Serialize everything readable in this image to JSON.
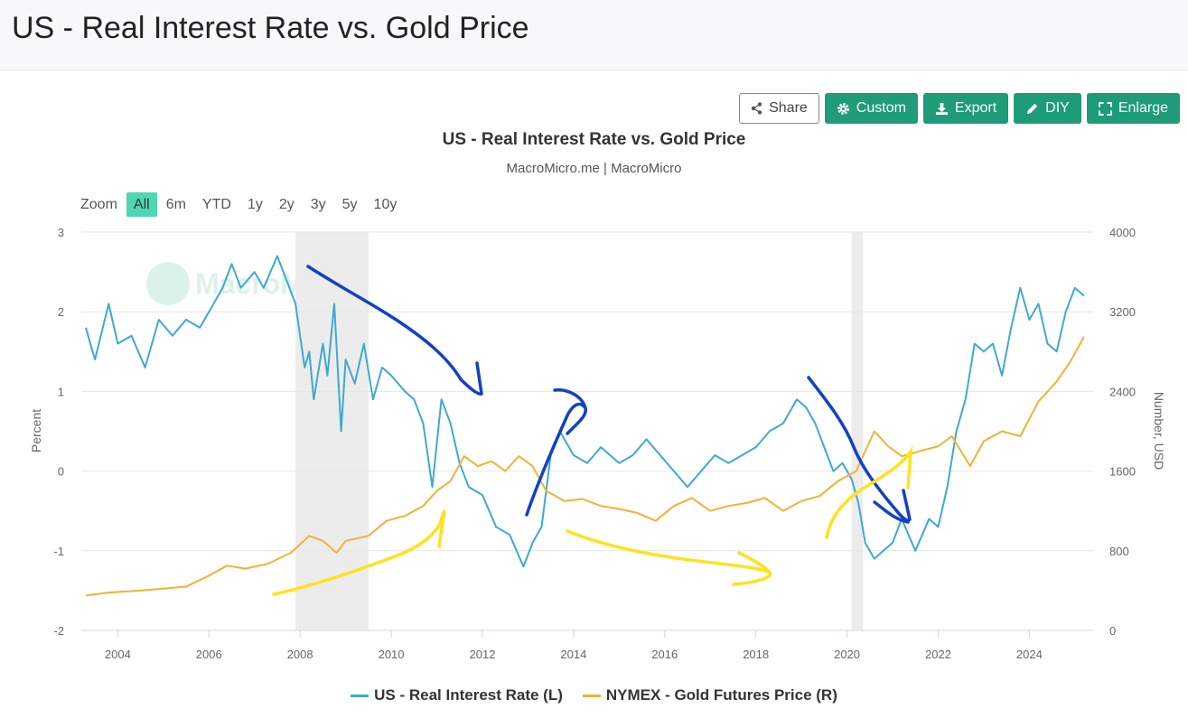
{
  "header": {
    "title": "US - Real Interest Rate vs. Gold Price"
  },
  "toolbar": {
    "share": "Share",
    "custom": "Custom",
    "export": "Export",
    "diy": "DIY",
    "enlarge": "Enlarge"
  },
  "zoom": {
    "label": "Zoom",
    "options": [
      "All",
      "6m",
      "YTD",
      "1y",
      "2y",
      "3y",
      "5y",
      "10y"
    ],
    "selected": "All"
  },
  "watermark": "MacroMicro",
  "colors": {
    "real_rate": "#3fa9d0",
    "gold": "#f2b233",
    "accent": "#1e9b78",
    "zoom_active": "#4fd6b4",
    "annotation_blue": "#1141c9",
    "annotation_yellow": "#ffe21f",
    "recession": "#ececec"
  },
  "chart_data": {
    "type": "line",
    "title": "US - Real Interest Rate vs. Gold Price",
    "subtitle": "MacroMicro.me | MacroMicro",
    "ylabel_left": "Percent",
    "ylabel_right": "Number, USD",
    "ylim_left": [
      -2,
      3
    ],
    "ylim_right": [
      0,
      4000
    ],
    "y_ticks_left": [
      "3",
      "2",
      "1",
      "0",
      "-1",
      "-2"
    ],
    "y_ticks_right": [
      "4000",
      "3200",
      "2400",
      "1600",
      "800",
      "0"
    ],
    "x_range": [
      2003.2,
      2025.4
    ],
    "x_ticks": [
      "2004",
      "2006",
      "2008",
      "2010",
      "2012",
      "2014",
      "2016",
      "2018",
      "2020",
      "2022",
      "2024"
    ],
    "grid": true,
    "legend_position": "bottom-center",
    "recession_shading": [
      [
        2007.9,
        2009.5
      ],
      [
        2020.1,
        2020.35
      ]
    ],
    "series": [
      {
        "name": "US - Real Interest Rate (L)",
        "axis": "left",
        "color": "#3fa9d0",
        "points": [
          [
            2003.3,
            1.8
          ],
          [
            2003.5,
            1.4
          ],
          [
            2003.8,
            2.1
          ],
          [
            2004.0,
            1.6
          ],
          [
            2004.3,
            1.7
          ],
          [
            2004.6,
            1.3
          ],
          [
            2004.9,
            1.9
          ],
          [
            2005.2,
            1.7
          ],
          [
            2005.5,
            1.9
          ],
          [
            2005.8,
            1.8
          ],
          [
            2006.0,
            2.0
          ],
          [
            2006.3,
            2.3
          ],
          [
            2006.5,
            2.6
          ],
          [
            2006.7,
            2.3
          ],
          [
            2007.0,
            2.5
          ],
          [
            2007.2,
            2.3
          ],
          [
            2007.5,
            2.7
          ],
          [
            2007.7,
            2.4
          ],
          [
            2007.9,
            2.1
          ],
          [
            2008.1,
            1.3
          ],
          [
            2008.2,
            1.5
          ],
          [
            2008.3,
            0.9
          ],
          [
            2008.5,
            1.6
          ],
          [
            2008.6,
            1.2
          ],
          [
            2008.75,
            2.1
          ],
          [
            2008.9,
            0.5
          ],
          [
            2009.0,
            1.4
          ],
          [
            2009.2,
            1.1
          ],
          [
            2009.4,
            1.6
          ],
          [
            2009.6,
            0.9
          ],
          [
            2009.8,
            1.3
          ],
          [
            2010.0,
            1.2
          ],
          [
            2010.3,
            1.0
          ],
          [
            2010.5,
            0.9
          ],
          [
            2010.7,
            0.6
          ],
          [
            2010.9,
            -0.2
          ],
          [
            2011.1,
            0.9
          ],
          [
            2011.3,
            0.6
          ],
          [
            2011.5,
            0.1
          ],
          [
            2011.7,
            -0.2
          ],
          [
            2012.0,
            -0.3
          ],
          [
            2012.3,
            -0.7
          ],
          [
            2012.6,
            -0.8
          ],
          [
            2012.9,
            -1.2
          ],
          [
            2013.1,
            -0.9
          ],
          [
            2013.3,
            -0.7
          ],
          [
            2013.5,
            0.2
          ],
          [
            2013.7,
            0.5
          ],
          [
            2014.0,
            0.2
          ],
          [
            2014.3,
            0.1
          ],
          [
            2014.6,
            0.3
          ],
          [
            2015.0,
            0.1
          ],
          [
            2015.3,
            0.2
          ],
          [
            2015.6,
            0.4
          ],
          [
            2015.9,
            0.2
          ],
          [
            2016.2,
            0.0
          ],
          [
            2016.5,
            -0.2
          ],
          [
            2016.8,
            0.0
          ],
          [
            2017.1,
            0.2
          ],
          [
            2017.4,
            0.1
          ],
          [
            2017.7,
            0.2
          ],
          [
            2018.0,
            0.3
          ],
          [
            2018.3,
            0.5
          ],
          [
            2018.6,
            0.6
          ],
          [
            2018.9,
            0.9
          ],
          [
            2019.1,
            0.8
          ],
          [
            2019.3,
            0.6
          ],
          [
            2019.5,
            0.3
          ],
          [
            2019.7,
            0.0
          ],
          [
            2019.9,
            0.1
          ],
          [
            2020.1,
            -0.1
          ],
          [
            2020.25,
            -0.4
          ],
          [
            2020.4,
            -0.9
          ],
          [
            2020.6,
            -1.1
          ],
          [
            2020.8,
            -1.0
          ],
          [
            2021.0,
            -0.9
          ],
          [
            2021.2,
            -0.6
          ],
          [
            2021.5,
            -1.0
          ],
          [
            2021.8,
            -0.6
          ],
          [
            2022.0,
            -0.7
          ],
          [
            2022.2,
            -0.2
          ],
          [
            2022.4,
            0.5
          ],
          [
            2022.6,
            0.9
          ],
          [
            2022.8,
            1.6
          ],
          [
            2023.0,
            1.5
          ],
          [
            2023.2,
            1.6
          ],
          [
            2023.4,
            1.2
          ],
          [
            2023.6,
            1.8
          ],
          [
            2023.8,
            2.3
          ],
          [
            2024.0,
            1.9
          ],
          [
            2024.2,
            2.1
          ],
          [
            2024.4,
            1.6
          ],
          [
            2024.6,
            1.5
          ],
          [
            2024.8,
            2.0
          ],
          [
            2025.0,
            2.3
          ],
          [
            2025.2,
            2.2
          ]
        ]
      },
      {
        "name": "NYMEX - Gold Futures Price (R)",
        "axis": "right",
        "color": "#f2b233",
        "points": [
          [
            2003.3,
            350
          ],
          [
            2003.8,
            380
          ],
          [
            2004.5,
            400
          ],
          [
            2005.0,
            420
          ],
          [
            2005.5,
            440
          ],
          [
            2006.0,
            550
          ],
          [
            2006.4,
            650
          ],
          [
            2006.8,
            620
          ],
          [
            2007.3,
            670
          ],
          [
            2007.8,
            780
          ],
          [
            2008.2,
            950
          ],
          [
            2008.5,
            900
          ],
          [
            2008.8,
            780
          ],
          [
            2009.0,
            900
          ],
          [
            2009.5,
            950
          ],
          [
            2009.9,
            1100
          ],
          [
            2010.3,
            1150
          ],
          [
            2010.7,
            1250
          ],
          [
            2011.0,
            1400
          ],
          [
            2011.3,
            1500
          ],
          [
            2011.6,
            1750
          ],
          [
            2011.9,
            1650
          ],
          [
            2012.2,
            1700
          ],
          [
            2012.5,
            1600
          ],
          [
            2012.8,
            1750
          ],
          [
            2013.1,
            1650
          ],
          [
            2013.4,
            1400
          ],
          [
            2013.8,
            1300
          ],
          [
            2014.2,
            1320
          ],
          [
            2014.6,
            1250
          ],
          [
            2015.0,
            1220
          ],
          [
            2015.4,
            1180
          ],
          [
            2015.8,
            1100
          ],
          [
            2016.2,
            1250
          ],
          [
            2016.6,
            1330
          ],
          [
            2017.0,
            1200
          ],
          [
            2017.4,
            1250
          ],
          [
            2017.8,
            1280
          ],
          [
            2018.2,
            1330
          ],
          [
            2018.6,
            1200
          ],
          [
            2019.0,
            1300
          ],
          [
            2019.4,
            1350
          ],
          [
            2019.8,
            1500
          ],
          [
            2020.2,
            1600
          ],
          [
            2020.6,
            2000
          ],
          [
            2020.9,
            1850
          ],
          [
            2021.2,
            1750
          ],
          [
            2021.6,
            1800
          ],
          [
            2022.0,
            1850
          ],
          [
            2022.3,
            1950
          ],
          [
            2022.7,
            1650
          ],
          [
            2023.0,
            1900
          ],
          [
            2023.4,
            2000
          ],
          [
            2023.8,
            1950
          ],
          [
            2024.2,
            2300
          ],
          [
            2024.6,
            2500
          ],
          [
            2024.9,
            2700
          ],
          [
            2025.2,
            2950
          ]
        ]
      }
    ]
  },
  "legend": {
    "real_rate": "US - Real Interest Rate (L)",
    "gold": "NYMEX - Gold Futures Price (R)"
  }
}
